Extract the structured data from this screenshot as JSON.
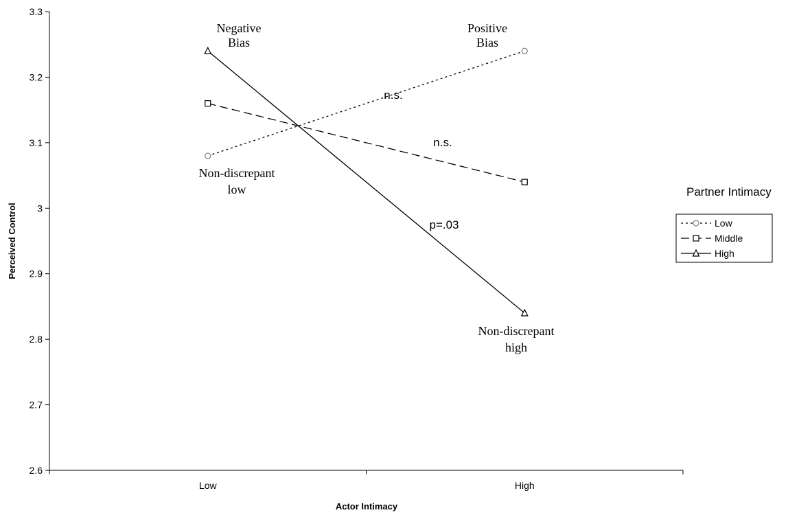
{
  "chart_data": {
    "type": "line",
    "categories": [
      "Low",
      "High"
    ],
    "xlabel": "Actor Intimacy",
    "ylabel": "Perceived Control",
    "ylim": [
      2.6,
      3.3
    ],
    "yticks": [
      "2.6",
      "2.7",
      "2.8",
      "2.9",
      "3",
      "3.1",
      "3.2",
      "3.3"
    ],
    "ytick_values": [
      2.6,
      2.7,
      2.8,
      2.9,
      3.0,
      3.1,
      3.2,
      3.3
    ],
    "grid": false,
    "legend": {
      "title": "Partner Intimacy",
      "placement": "right"
    },
    "series": [
      {
        "name": "Low",
        "values": [
          3.08,
          3.24
        ],
        "marker": "circle",
        "line": "dotted",
        "marker_color": "#808080"
      },
      {
        "name": "Middle",
        "values": [
          3.16,
          3.04
        ],
        "marker": "square",
        "line": "dashed",
        "marker_color": "#000000"
      },
      {
        "name": "High",
        "values": [
          3.24,
          2.84
        ],
        "marker": "triangle",
        "line": "solid",
        "marker_color": "#000000"
      }
    ],
    "annotations": {
      "negative_bias": [
        "Negative",
        "Bias"
      ],
      "positive_bias": [
        "Positive",
        "Bias"
      ],
      "nondisc_low": [
        "Non-discrepant",
        "low"
      ],
      "nondisc_high": [
        "Non-discrepant",
        "high"
      ],
      "ns_low": "n.s.",
      "ns_middle": "n.s.",
      "p_high": "p=.03"
    }
  }
}
